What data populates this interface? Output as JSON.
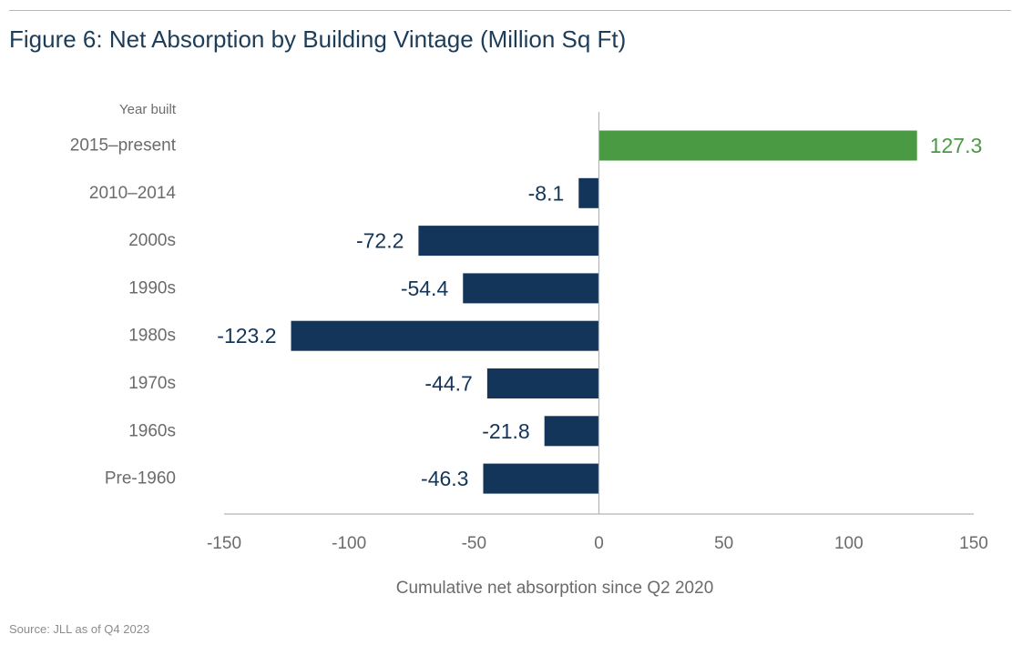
{
  "title": "Figure 6: Net Absorption by Building Vintage (Million Sq Ft)",
  "source": "Source: JLL as of Q4 2023",
  "colors": {
    "positive": "#4a9a43",
    "negative": "#13355a",
    "axis": "#b3b3b3",
    "label": "#6b6b6b"
  },
  "chart_data": {
    "type": "bar",
    "orientation": "horizontal",
    "category_axis_label": "Year built",
    "xlabel": "Cumulative net absorption since Q2 2020",
    "xlim": [
      -150,
      150
    ],
    "xticks": [
      "-150",
      "-100",
      "-50",
      "0",
      "50",
      "100",
      "150"
    ],
    "grid": false,
    "categories": [
      "2015–present",
      "2010–2014",
      "2000s",
      "1990s",
      "1980s",
      "1970s",
      "1960s",
      "Pre-1960"
    ],
    "values": [
      127.3,
      -8.1,
      -72.2,
      -54.4,
      -123.2,
      -44.7,
      -21.8,
      -46.3
    ],
    "labels": [
      "127.3",
      "-8.1",
      "-72.2",
      "-54.4",
      "-123.2",
      "-44.7",
      "-21.8",
      "-46.3"
    ]
  }
}
